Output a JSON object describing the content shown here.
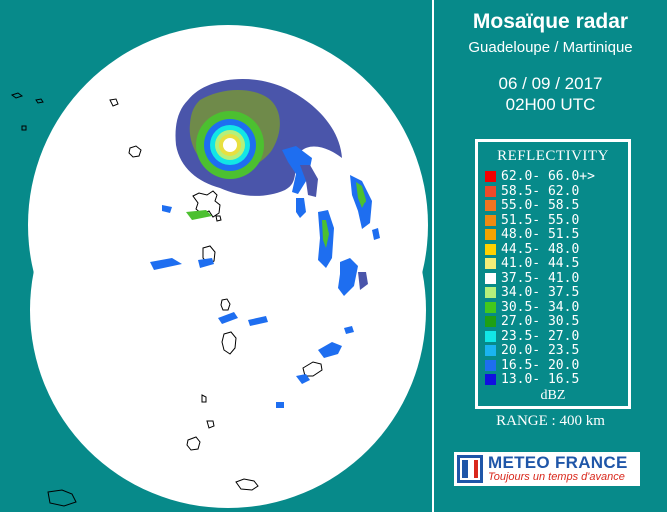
{
  "header": {
    "title": "Mosaïque radar",
    "subtitle": "Guadeloupe / Martinique",
    "date": "06 / 09 / 2017",
    "time": "02H00 UTC"
  },
  "legend": {
    "title": "REFLECTIVITY",
    "unit": "dBZ",
    "items": [
      {
        "label": "62.0- 66.0+>",
        "color": "#f20000"
      },
      {
        "label": "58.5- 62.0",
        "color": "#ee4a2a"
      },
      {
        "label": "55.0- 58.5",
        "color": "#f07420"
      },
      {
        "label": "51.5- 55.0",
        "color": "#ee8a10"
      },
      {
        "label": "48.0- 51.5",
        "color": "#f2a300"
      },
      {
        "label": "44.5- 48.0",
        "color": "#ffd200"
      },
      {
        "label": "41.0- 44.5",
        "color": "#f2ee78"
      },
      {
        "label": "37.5- 41.0",
        "color": "#ffffff"
      },
      {
        "label": "34.0- 37.5",
        "color": "#b4f07c"
      },
      {
        "label": "30.5- 34.0",
        "color": "#42c81c"
      },
      {
        "label": "27.0- 30.5",
        "color": "#1ea014"
      },
      {
        "label": "23.5- 27.0",
        "color": "#12e6e6"
      },
      {
        "label": "20.0- 23.5",
        "color": "#1ab4f0"
      },
      {
        "label": "16.5- 20.0",
        "color": "#1e6ef0"
      },
      {
        "label": "13.0- 16.5",
        "color": "#1010e0"
      }
    ]
  },
  "range": "RANGE : 400 km",
  "logo": {
    "name": "METEO FRANCE",
    "tagline": "Toujours un temps d'avance"
  },
  "colors": {
    "background": "#078a8a",
    "coverage": "#ffffff",
    "hurricane_outer": "#4a55aa",
    "hurricane_mid": "#6f8a4a",
    "hurricane_green": "#4cc030",
    "eye_ring": "#e8e040"
  },
  "icons": [
    "meteo-france-logo-icon"
  ]
}
